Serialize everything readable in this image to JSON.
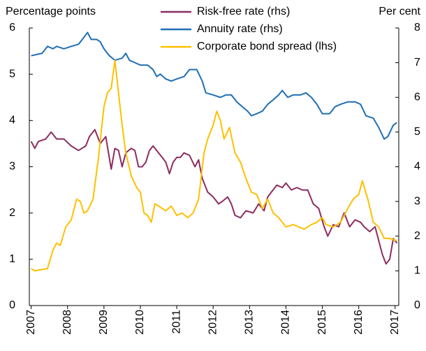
{
  "chart_data": {
    "type": "line",
    "y_label": "Percentage points",
    "y2_label": "Per cent",
    "xlim": [
      2006.95,
      2017.1
    ],
    "xticks": [
      2007,
      2008,
      2009,
      2010,
      2011,
      2012,
      2013,
      2014,
      2015,
      2016,
      2017
    ],
    "ylim": [
      0,
      6
    ],
    "yticks": [
      0,
      1,
      2,
      3,
      4,
      5,
      6
    ],
    "y2lim": [
      0,
      8
    ],
    "y2ticks": [
      0,
      1,
      2,
      3,
      4,
      5,
      6,
      7,
      8
    ],
    "legend": "top",
    "series": [
      {
        "name": "Risk-free rate (rhs)",
        "color": "#8c2d5f",
        "axis": "y2",
        "x": [
          2007,
          2007.1,
          2007.2,
          2007.4,
          2007.55,
          2007.7,
          2007.9,
          2008.1,
          2008.3,
          2008.5,
          2008.6,
          2008.75,
          2008.9,
          2009.05,
          2009.2,
          2009.3,
          2009.4,
          2009.5,
          2009.6,
          2009.75,
          2009.85,
          2009.95,
          2010.05,
          2010.15,
          2010.25,
          2010.35,
          2010.5,
          2010.6,
          2010.7,
          2010.8,
          2010.9,
          2011.0,
          2011.1,
          2011.2,
          2011.35,
          2011.5,
          2011.6,
          2011.7,
          2011.85,
          2012.0,
          2012.15,
          2012.25,
          2012.4,
          2012.5,
          2012.6,
          2012.75,
          2012.9,
          2013.1,
          2013.25,
          2013.4,
          2013.5,
          2013.6,
          2013.75,
          2013.9,
          2014.0,
          2014.15,
          2014.3,
          2014.45,
          2014.6,
          2014.75,
          2014.9,
          2015.05,
          2015.15,
          2015.3,
          2015.45,
          2015.6,
          2015.75,
          2015.9,
          2016.05,
          2016.15,
          2016.3,
          2016.45,
          2016.55,
          2016.65,
          2016.75,
          2016.85,
          2016.95,
          2017.05
        ],
        "values": [
          4.73,
          4.53,
          4.73,
          4.8,
          5.0,
          4.8,
          4.8,
          4.6,
          4.47,
          4.6,
          4.87,
          5.07,
          4.67,
          4.87,
          3.93,
          4.53,
          4.47,
          4.0,
          4.4,
          4.53,
          4.47,
          4.0,
          4.0,
          4.13,
          4.47,
          4.6,
          4.4,
          4.27,
          4.13,
          3.8,
          4.13,
          4.27,
          4.27,
          4.4,
          4.33,
          4.0,
          4.2,
          3.67,
          3.27,
          3.13,
          2.93,
          3.0,
          3.13,
          2.93,
          2.6,
          2.53,
          2.73,
          2.67,
          2.93,
          2.73,
          3.13,
          3.27,
          3.47,
          3.4,
          3.53,
          3.33,
          3.4,
          3.33,
          3.33,
          2.93,
          2.8,
          2.27,
          2.0,
          2.33,
          2.27,
          2.67,
          2.27,
          2.47,
          2.4,
          2.27,
          2.13,
          2.27,
          1.87,
          1.47,
          1.2,
          1.33,
          1.93,
          1.8
        ]
      },
      {
        "name": "Annuity rate (rhs)",
        "color": "#1f6fb5",
        "axis": "y2",
        "x": [
          2007,
          2007.3,
          2007.45,
          2007.6,
          2007.7,
          2007.9,
          2008.1,
          2008.3,
          2008.45,
          2008.55,
          2008.65,
          2008.8,
          2008.9,
          2009.0,
          2009.15,
          2009.3,
          2009.5,
          2009.6,
          2009.7,
          2009.85,
          2010.0,
          2010.2,
          2010.35,
          2010.45,
          2010.55,
          2010.7,
          2010.85,
          2011.0,
          2011.2,
          2011.35,
          2011.55,
          2011.7,
          2011.8,
          2012.0,
          2012.2,
          2012.35,
          2012.5,
          2012.65,
          2012.8,
          2012.95,
          2013.05,
          2013.2,
          2013.35,
          2013.5,
          2013.65,
          2013.8,
          2013.9,
          2014.05,
          2014.2,
          2014.4,
          2014.55,
          2014.7,
          2014.85,
          2015.0,
          2015.2,
          2015.35,
          2015.5,
          2015.7,
          2015.9,
          2016.05,
          2016.2,
          2016.4,
          2016.55,
          2016.7,
          2016.8,
          2016.95,
          2017.05
        ],
        "values": [
          7.2,
          7.27,
          7.47,
          7.4,
          7.47,
          7.4,
          7.47,
          7.53,
          7.73,
          7.87,
          7.67,
          7.67,
          7.6,
          7.4,
          7.2,
          7.07,
          7.13,
          7.27,
          7.07,
          7.0,
          6.93,
          6.93,
          6.8,
          6.6,
          6.67,
          6.53,
          6.47,
          6.53,
          6.6,
          6.8,
          6.8,
          6.47,
          6.13,
          6.07,
          6.0,
          6.07,
          6.07,
          5.87,
          5.73,
          5.6,
          5.47,
          5.53,
          5.6,
          5.8,
          5.93,
          6.07,
          6.2,
          6.0,
          6.07,
          6.07,
          6.13,
          6.0,
          5.8,
          5.53,
          5.53,
          5.73,
          5.8,
          5.87,
          5.87,
          5.8,
          5.47,
          5.4,
          5.13,
          4.8,
          4.87,
          5.2,
          5.27
        ]
      },
      {
        "name": "Corporate bond spread (lhs)",
        "color": "#ffc000",
        "axis": "y",
        "x": [
          2007,
          2007.1,
          2007.3,
          2007.45,
          2007.6,
          2007.7,
          2007.8,
          2007.95,
          2008.1,
          2008.25,
          2008.35,
          2008.45,
          2008.55,
          2008.7,
          2008.85,
          2009.0,
          2009.1,
          2009.2,
          2009.3,
          2009.4,
          2009.5,
          2009.6,
          2009.75,
          2009.9,
          2010.0,
          2010.1,
          2010.2,
          2010.3,
          2010.4,
          2010.5,
          2010.7,
          2010.85,
          2011.0,
          2011.15,
          2011.3,
          2011.45,
          2011.6,
          2011.75,
          2011.85,
          2012.0,
          2012.1,
          2012.2,
          2012.3,
          2012.45,
          2012.6,
          2012.75,
          2012.9,
          2013.05,
          2013.2,
          2013.35,
          2013.5,
          2013.65,
          2013.8,
          2014.0,
          2014.2,
          2014.35,
          2014.5,
          2014.7,
          2014.85,
          2015.0,
          2015.1,
          2015.3,
          2015.5,
          2015.7,
          2015.85,
          2016.0,
          2016.1,
          2016.25,
          2016.4,
          2016.55,
          2016.7,
          2016.85,
          2017.05
        ],
        "values": [
          0.8,
          0.75,
          0.78,
          0.8,
          1.2,
          1.35,
          1.3,
          1.7,
          1.85,
          2.3,
          2.25,
          2.0,
          2.05,
          2.3,
          3.2,
          4.3,
          4.6,
          4.7,
          5.3,
          4.6,
          3.9,
          3.3,
          2.8,
          2.55,
          2.45,
          2.0,
          1.95,
          1.8,
          2.2,
          2.15,
          2.05,
          2.15,
          1.95,
          2.0,
          1.9,
          2.0,
          2.3,
          3.3,
          3.6,
          3.9,
          4.2,
          4.0,
          3.6,
          3.85,
          3.3,
          3.1,
          2.75,
          2.45,
          2.4,
          2.1,
          2.3,
          2.0,
          1.9,
          1.7,
          1.75,
          1.7,
          1.65,
          1.75,
          1.8,
          1.9,
          1.75,
          1.7,
          1.8,
          2.1,
          2.3,
          2.4,
          2.7,
          2.3,
          1.8,
          1.7,
          1.45,
          1.45,
          1.4
        ]
      }
    ]
  }
}
